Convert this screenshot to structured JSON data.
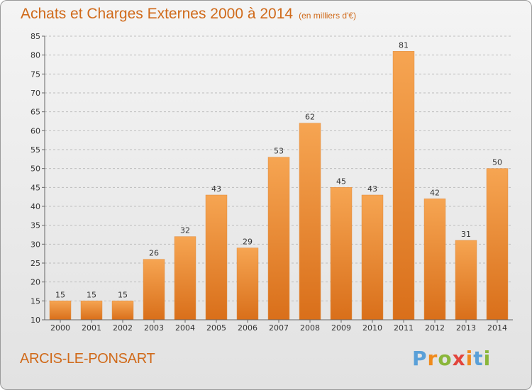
{
  "header": {
    "title": "Achats et Charges Externes 2000 à 2014",
    "subtitle": "(en milliers d'€)"
  },
  "footer": {
    "town": "ARCIS-LE-PONSART",
    "logo_text": "Proxiti"
  },
  "colors": {
    "accent": "#d06a1a",
    "bar_light": "#f6a552",
    "bar_dark": "#d96f1a",
    "grid": "#bdbdbd",
    "logo": [
      "#5aa0d8",
      "#f08a1c",
      "#8ab63a",
      "#e2453c",
      "#f08a1c",
      "#5aa0d8",
      "#8ab63a"
    ]
  },
  "chart_data": {
    "type": "bar",
    "title": "Achats et Charges Externes 2000 à 2014",
    "subtitle": "(en milliers d'€)",
    "categories": [
      "2000",
      "2001",
      "2002",
      "2003",
      "2004",
      "2005",
      "2006",
      "2007",
      "2008",
      "2009",
      "2010",
      "2011",
      "2012",
      "2013",
      "2014"
    ],
    "values": [
      15,
      15,
      15,
      26,
      32,
      43,
      29,
      53,
      62,
      45,
      43,
      81,
      42,
      31,
      50
    ],
    "ylim": [
      10,
      85
    ],
    "yticks": [
      10,
      15,
      20,
      25,
      30,
      35,
      40,
      45,
      50,
      55,
      60,
      65,
      70,
      75,
      80,
      85
    ],
    "grid": true,
    "data_labels": true
  }
}
